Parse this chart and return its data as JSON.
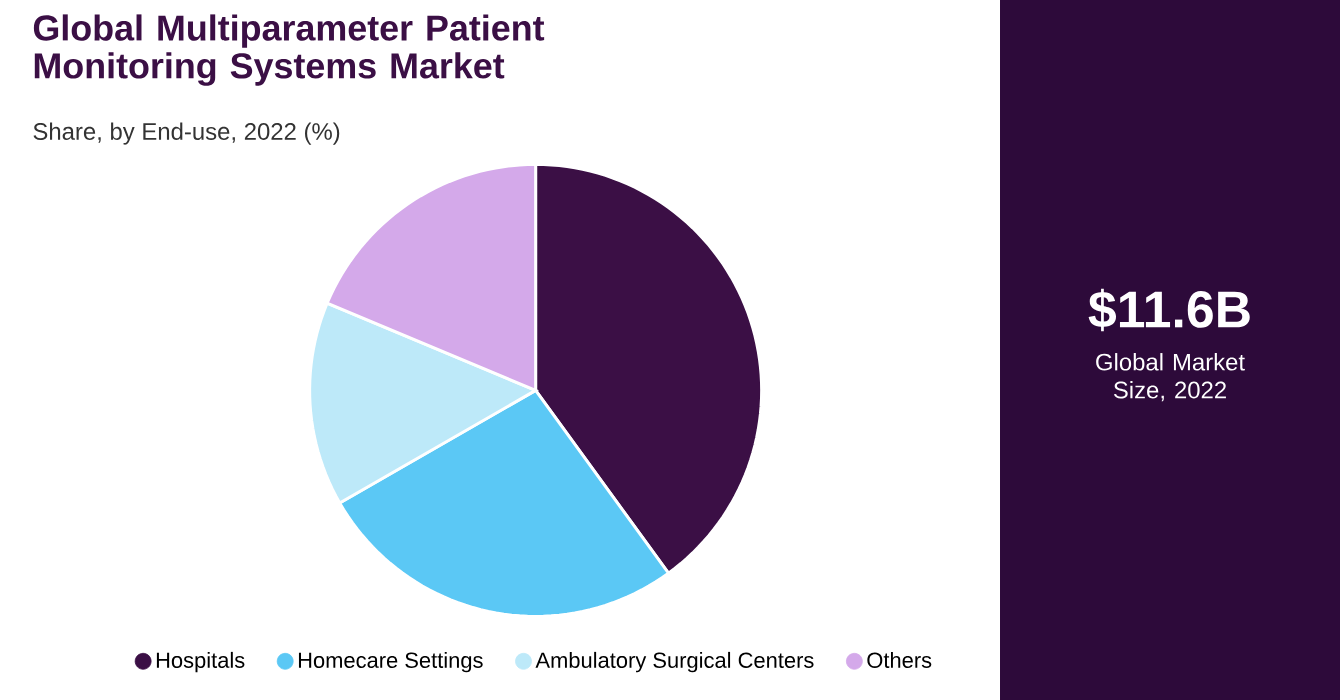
{
  "chart_data": {
    "type": "pie",
    "title": "Global Multiparameter Patient Monitoring Systems Market",
    "subtitle": "Share, by End-use, 2022 (%)",
    "categories": [
      "Hospitals",
      "Homecare Settings",
      "Ambulatory Surgical Centers",
      "Others"
    ],
    "values": [
      40,
      26.7,
      14.6,
      18.7
    ],
    "colors": [
      "#3b0f45",
      "#5bc8f5",
      "#bde9f9",
      "#d4a9ea"
    ],
    "legend": "bottom",
    "annotations": [
      "$11.6B",
      "Global Market Size, 2022"
    ]
  }
}
